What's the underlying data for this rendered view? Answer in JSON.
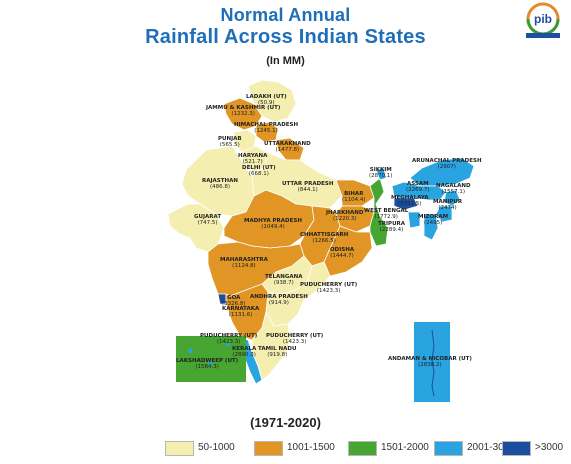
{
  "title_line1": "Normal Annual",
  "title_line2": "Rainfall Across Indian States",
  "subtitle": "(In MM)",
  "period": "(1971-2020)",
  "logo_text": "pib",
  "colors": {
    "title": "#1f6fb8",
    "c1": "#f4eeb0",
    "c2": "#e09524",
    "c3": "#47a531",
    "c4": "#2aa4e0",
    "c5": "#1b4e9e"
  },
  "legend": [
    {
      "label": "50-1000",
      "color": "#f4eeb0"
    },
    {
      "label": "1001-1500",
      "color": "#e09524"
    },
    {
      "label": "1501-2000",
      "color": "#47a531"
    },
    {
      "label": "2001-3000",
      "color": "#2aa4e0"
    },
    {
      "label": ">3000",
      "color": "#1b4e9e"
    }
  ],
  "states": [
    {
      "name": "LADAKH (UT)",
      "value": "(50.9)"
    },
    {
      "name": "JAMMU & KASHMIR (UT)",
      "value": "(1232.3)"
    },
    {
      "name": "HIMACHAL PRADESH",
      "value": "(1245.1)"
    },
    {
      "name": "PUNJAB",
      "value": "(565.5)"
    },
    {
      "name": "UTTARAKHAND",
      "value": "(1477.8)"
    },
    {
      "name": "HARYANA",
      "value": "(521.7)"
    },
    {
      "name": "DELHI (UT)",
      "value": "(668.1)"
    },
    {
      "name": "RAJASTHAN",
      "value": "(486.8)"
    },
    {
      "name": "UTTAR PRADESH",
      "value": "(844.1)"
    },
    {
      "name": "BIHAR",
      "value": "(1104.4)"
    },
    {
      "name": "SIKKIM",
      "value": "(2870.1)"
    },
    {
      "name": "ARUNACHAL PRADESH",
      "value": "(2907)"
    },
    {
      "name": "ASSAM",
      "value": "(2269.7)"
    },
    {
      "name": "NAGALAND",
      "value": "(1557.1)"
    },
    {
      "name": "MEGHALAYA",
      "value": "(3751.5)"
    },
    {
      "name": "MANIPUR",
      "value": "(2474)"
    },
    {
      "name": "MIZORAM",
      "value": "(2495)"
    },
    {
      "name": "TRIPURA",
      "value": "(2289.4)"
    },
    {
      "name": "WEST BENGAL",
      "value": "(1772.9)"
    },
    {
      "name": "JHARKHAND",
      "value": "(1220.3)"
    },
    {
      "name": "GUJARAT",
      "value": "(747.5)"
    },
    {
      "name": "MADHYA PRADESH",
      "value": "(1049.4)"
    },
    {
      "name": "CHHATTISGARH",
      "value": "(1266.5)"
    },
    {
      "name": "ODISHA",
      "value": "(1444.7)"
    },
    {
      "name": "MAHARASHTRA",
      "value": "(1124.8)"
    },
    {
      "name": "TELANGANA",
      "value": "(938.7)"
    },
    {
      "name": "PUDUCHERRY (UT)",
      "value": "(1423.3)"
    },
    {
      "name": "GOA",
      "value": "(3326.8)"
    },
    {
      "name": "ANDHRA PRADESH",
      "value": "(914.9)"
    },
    {
      "name": "KARNATAKA",
      "value": "(1131.6)"
    },
    {
      "name": "PUDUCHERRY (UT)",
      "value": "(1423.3)"
    },
    {
      "name": "PUDUCHERRY (UT)",
      "value": "(1423.3)"
    },
    {
      "name": "KERALA",
      "value": "(2890.3)"
    },
    {
      "name": "TAMIL NADU",
      "value": "(919.8)"
    },
    {
      "name": "LAKSHADWEEP (UT)",
      "value": "(1584.3)"
    },
    {
      "name": "ANDAMAN & NICOBAR (UT)",
      "value": "(2838.2)"
    }
  ]
}
